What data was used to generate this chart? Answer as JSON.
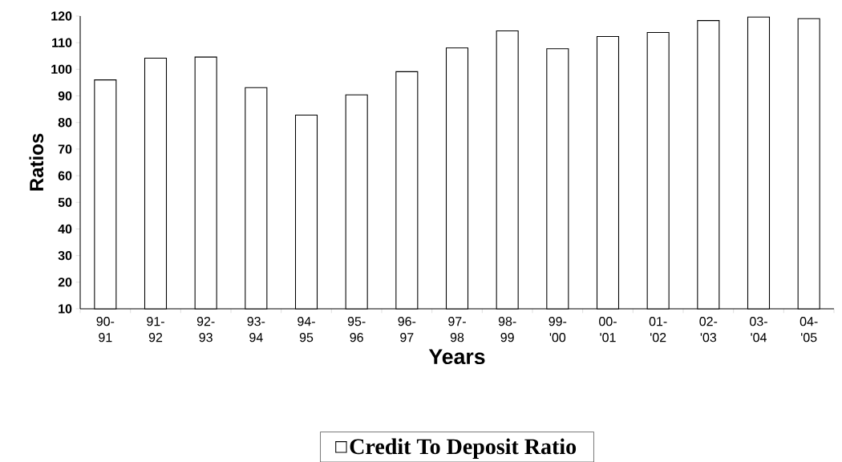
{
  "chart_data": {
    "type": "bar",
    "xlabel": "Years",
    "ylabel": "Ratios",
    "categories": [
      "90-91",
      "91-92",
      "92-93",
      "93-94",
      "94-95",
      "95-96",
      "96-97",
      "97-98",
      "98-99",
      "99-'00",
      "00-'01",
      "01-'02",
      "02-'03",
      "03-'04",
      "04-'05"
    ],
    "series": [
      {
        "name": "Credit To Deposit Ratio",
        "color": "#ffffff",
        "values": [
          96,
          104.2,
          104.6,
          93.1,
          82.8,
          90.4,
          99.1,
          108,
          114.4,
          107.7,
          112.3,
          113.8,
          118.3,
          119.6,
          119
        ]
      }
    ],
    "ylim": [
      10,
      120
    ],
    "yticks": [
      10,
      20,
      30,
      40,
      50,
      60,
      70,
      80,
      90,
      100,
      110,
      120
    ],
    "grid": false,
    "legend": "bottom"
  }
}
